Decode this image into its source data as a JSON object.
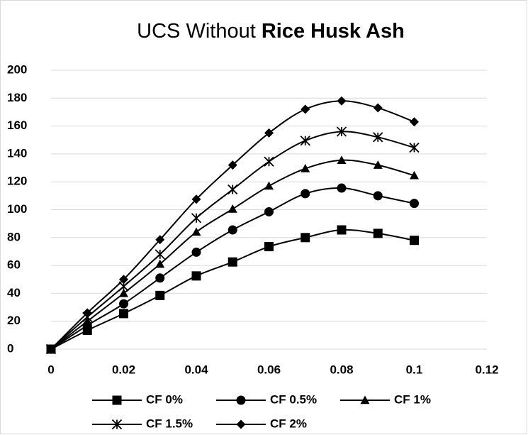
{
  "chart_data": {
    "type": "line",
    "title": [
      "UCS Without",
      "Rice Husk Ash"
    ],
    "title_bold": [
      false,
      true
    ],
    "x": [
      0,
      0.01,
      0.02,
      0.03,
      0.04,
      0.05,
      0.06,
      0.07,
      0.08,
      0.09,
      0.1
    ],
    "series": [
      {
        "name": "CF 0%",
        "color": "#000000",
        "marker": "square",
        "values": [
          0,
          13.5,
          25.5,
          38.5,
          52.5,
          62.5,
          73.5,
          80,
          85.5,
          83,
          78
        ]
      },
      {
        "name": "CF 0.5%",
        "color": "#000000",
        "marker": "circle",
        "values": [
          0,
          17,
          32.5,
          51,
          69.5,
          85.5,
          98.5,
          111.5,
          115.5,
          110,
          104.5
        ]
      },
      {
        "name": "CF 1%",
        "color": "#000000",
        "marker": "triangle",
        "values": [
          0,
          20,
          40,
          61,
          84,
          100.5,
          117,
          129.5,
          135.5,
          132,
          124.5
        ]
      },
      {
        "name": "CF 1.5%",
        "color": "#000000",
        "marker": "star",
        "values": [
          0,
          23,
          45,
          68,
          94,
          114.5,
          134.5,
          149.5,
          156,
          152,
          144.5
        ]
      },
      {
        "name": "CF 2%",
        "color": "#000000",
        "marker": "diamond",
        "values": [
          0,
          26,
          50,
          78.5,
          107.5,
          132,
          155,
          172,
          178,
          173,
          163
        ]
      }
    ],
    "xlim": [
      0,
      0.12
    ],
    "xticks": [
      0,
      0.02,
      0.04,
      0.06,
      0.08,
      0.1,
      0.12
    ],
    "ylim": [
      0,
      200
    ],
    "yticks": [
      0,
      20,
      40,
      60,
      80,
      100,
      120,
      140,
      160,
      180,
      200
    ],
    "grid": true,
    "smooth": true,
    "legend": "bottom"
  }
}
